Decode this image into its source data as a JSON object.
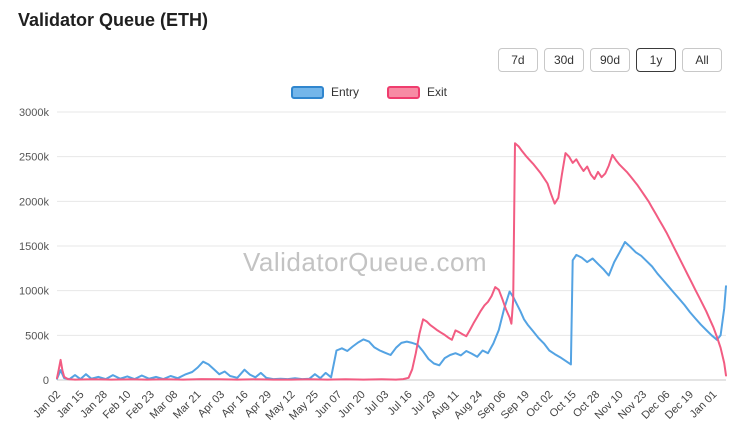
{
  "title": "Validator Queue (ETH)",
  "range_buttons": [
    {
      "label": "7d",
      "selected": false
    },
    {
      "label": "30d",
      "selected": false
    },
    {
      "label": "90d",
      "selected": false
    },
    {
      "label": "1y",
      "selected": true
    },
    {
      "label": "All",
      "selected": false
    }
  ],
  "legend": [
    {
      "label": "Entry",
      "color": "#74b6ea",
      "border": "#3086ce"
    },
    {
      "label": "Exit",
      "color": "#f78ba4",
      "border": "#ef3d6e"
    }
  ],
  "watermark": "ValidatorQueue.com",
  "chart_data": {
    "type": "line",
    "title": "Validator Queue (ETH)",
    "xlabel": "",
    "ylabel": "",
    "value_unit": "k",
    "ylim": [
      0,
      3000
    ],
    "y_ticks": [
      "0",
      "500k",
      "1000k",
      "1500k",
      "2000k",
      "2500k",
      "3000k"
    ],
    "y_tick_values": [
      0,
      500,
      1000,
      1500,
      2000,
      2500,
      3000
    ],
    "grid": "horizontal",
    "legend_position": "top",
    "x_range": [
      0,
      371
    ],
    "x_tick_days": [
      0,
      13,
      26,
      39,
      52,
      65,
      78,
      91,
      104,
      117,
      130,
      143,
      156,
      169,
      182,
      195,
      208,
      221,
      234,
      247,
      260,
      273,
      286,
      299,
      312,
      325,
      338,
      351,
      364
    ],
    "x_tick_labels": [
      "Jan 02",
      "Jan 15",
      "Jan 28",
      "Feb 10",
      "Feb 23",
      "Mar 08",
      "Mar 21",
      "Apr 03",
      "Apr 16",
      "Apr 29",
      "May 12",
      "May 25",
      "Jun 07",
      "Jun 20",
      "Jul 03",
      "Jul 16",
      "Jul 29",
      "Aug 11",
      "Aug 24",
      "Sep 06",
      "Sep 19",
      "Oct 02",
      "Oct 15",
      "Oct 28",
      "Nov 10",
      "Nov 23",
      "Dec 06",
      "Dec 19",
      "Jan 01"
    ],
    "series": [
      {
        "name": "Entry",
        "color": "#54a3e3",
        "points": [
          [
            0,
            15
          ],
          [
            2,
            110
          ],
          [
            4,
            20
          ],
          [
            7,
            10
          ],
          [
            10,
            55
          ],
          [
            13,
            10
          ],
          [
            16,
            65
          ],
          [
            19,
            15
          ],
          [
            23,
            35
          ],
          [
            27,
            10
          ],
          [
            31,
            55
          ],
          [
            35,
            15
          ],
          [
            39,
            40
          ],
          [
            43,
            10
          ],
          [
            47,
            50
          ],
          [
            51,
            15
          ],
          [
            55,
            35
          ],
          [
            59,
            10
          ],
          [
            63,
            45
          ],
          [
            67,
            20
          ],
          [
            71,
            60
          ],
          [
            75,
            90
          ],
          [
            78,
            140
          ],
          [
            81,
            205
          ],
          [
            84,
            175
          ],
          [
            87,
            120
          ],
          [
            90,
            65
          ],
          [
            93,
            95
          ],
          [
            96,
            45
          ],
          [
            100,
            25
          ],
          [
            104,
            115
          ],
          [
            107,
            60
          ],
          [
            110,
            30
          ],
          [
            113,
            80
          ],
          [
            116,
            25
          ],
          [
            120,
            10
          ],
          [
            124,
            15
          ],
          [
            128,
            10
          ],
          [
            132,
            20
          ],
          [
            136,
            10
          ],
          [
            140,
            15
          ],
          [
            143,
            65
          ],
          [
            146,
            20
          ],
          [
            149,
            80
          ],
          [
            152,
            30
          ],
          [
            155,
            330
          ],
          [
            158,
            355
          ],
          [
            161,
            325
          ],
          [
            164,
            375
          ],
          [
            167,
            420
          ],
          [
            170,
            455
          ],
          [
            173,
            430
          ],
          [
            176,
            365
          ],
          [
            179,
            330
          ],
          [
            182,
            305
          ],
          [
            185,
            280
          ],
          [
            188,
            360
          ],
          [
            191,
            415
          ],
          [
            194,
            430
          ],
          [
            197,
            415
          ],
          [
            200,
            395
          ],
          [
            203,
            320
          ],
          [
            206,
            235
          ],
          [
            209,
            185
          ],
          [
            212,
            165
          ],
          [
            215,
            245
          ],
          [
            218,
            280
          ],
          [
            221,
            300
          ],
          [
            224,
            275
          ],
          [
            227,
            325
          ],
          [
            230,
            295
          ],
          [
            233,
            260
          ],
          [
            236,
            330
          ],
          [
            239,
            300
          ],
          [
            242,
            410
          ],
          [
            245,
            560
          ],
          [
            248,
            800
          ],
          [
            251,
            990
          ],
          [
            253,
            930
          ],
          [
            255,
            850
          ],
          [
            257,
            770
          ],
          [
            259,
            680
          ],
          [
            261,
            620
          ],
          [
            264,
            545
          ],
          [
            267,
            470
          ],
          [
            270,
            410
          ],
          [
            273,
            330
          ],
          [
            276,
            290
          ],
          [
            279,
            255
          ],
          [
            282,
            215
          ],
          [
            285,
            175
          ],
          [
            286,
            1340
          ],
          [
            288,
            1400
          ],
          [
            291,
            1370
          ],
          [
            294,
            1320
          ],
          [
            297,
            1360
          ],
          [
            300,
            1300
          ],
          [
            303,
            1240
          ],
          [
            306,
            1170
          ],
          [
            309,
            1320
          ],
          [
            312,
            1430
          ],
          [
            315,
            1545
          ],
          [
            318,
            1490
          ],
          [
            321,
            1430
          ],
          [
            324,
            1390
          ],
          [
            327,
            1330
          ],
          [
            330,
            1270
          ],
          [
            333,
            1190
          ],
          [
            336,
            1120
          ],
          [
            339,
            1050
          ],
          [
            342,
            980
          ],
          [
            345,
            910
          ],
          [
            348,
            840
          ],
          [
            351,
            760
          ],
          [
            354,
            690
          ],
          [
            357,
            620
          ],
          [
            360,
            560
          ],
          [
            363,
            500
          ],
          [
            366,
            450
          ],
          [
            368,
            500
          ],
          [
            370,
            800
          ],
          [
            371,
            1050
          ]
        ]
      },
      {
        "name": "Exit",
        "color": "#f25c82",
        "points": [
          [
            0,
            20
          ],
          [
            1,
            120
          ],
          [
            2,
            225
          ],
          [
            3,
            110
          ],
          [
            4,
            35
          ],
          [
            6,
            10
          ],
          [
            10,
            5
          ],
          [
            20,
            8
          ],
          [
            30,
            5
          ],
          [
            40,
            8
          ],
          [
            50,
            5
          ],
          [
            60,
            8
          ],
          [
            70,
            5
          ],
          [
            80,
            10
          ],
          [
            90,
            8
          ],
          [
            100,
            5
          ],
          [
            110,
            8
          ],
          [
            120,
            5
          ],
          [
            130,
            5
          ],
          [
            140,
            8
          ],
          [
            150,
            5
          ],
          [
            160,
            8
          ],
          [
            170,
            5
          ],
          [
            180,
            8
          ],
          [
            188,
            5
          ],
          [
            192,
            10
          ],
          [
            195,
            25
          ],
          [
            197,
            120
          ],
          [
            199,
            300
          ],
          [
            201,
            520
          ],
          [
            203,
            680
          ],
          [
            205,
            655
          ],
          [
            207,
            615
          ],
          [
            209,
            585
          ],
          [
            211,
            555
          ],
          [
            213,
            530
          ],
          [
            215,
            505
          ],
          [
            217,
            475
          ],
          [
            219,
            450
          ],
          [
            221,
            555
          ],
          [
            223,
            535
          ],
          [
            225,
            510
          ],
          [
            227,
            490
          ],
          [
            229,
            560
          ],
          [
            231,
            635
          ],
          [
            233,
            705
          ],
          [
            235,
            775
          ],
          [
            237,
            835
          ],
          [
            239,
            875
          ],
          [
            241,
            940
          ],
          [
            243,
            1040
          ],
          [
            245,
            1010
          ],
          [
            247,
            905
          ],
          [
            249,
            790
          ],
          [
            251,
            700
          ],
          [
            252,
            630
          ],
          [
            253,
            900
          ],
          [
            254,
            2650
          ],
          [
            256,
            2615
          ],
          [
            258,
            2560
          ],
          [
            260,
            2510
          ],
          [
            262,
            2465
          ],
          [
            264,
            2420
          ],
          [
            266,
            2370
          ],
          [
            268,
            2320
          ],
          [
            270,
            2260
          ],
          [
            272,
            2200
          ],
          [
            274,
            2080
          ],
          [
            276,
            1975
          ],
          [
            278,
            2040
          ],
          [
            280,
            2300
          ],
          [
            282,
            2540
          ],
          [
            284,
            2500
          ],
          [
            286,
            2430
          ],
          [
            288,
            2470
          ],
          [
            290,
            2400
          ],
          [
            292,
            2340
          ],
          [
            294,
            2390
          ],
          [
            296,
            2300
          ],
          [
            298,
            2250
          ],
          [
            300,
            2330
          ],
          [
            302,
            2270
          ],
          [
            304,
            2310
          ],
          [
            306,
            2400
          ],
          [
            308,
            2520
          ],
          [
            310,
            2460
          ],
          [
            312,
            2410
          ],
          [
            314,
            2370
          ],
          [
            316,
            2330
          ],
          [
            318,
            2280
          ],
          [
            320,
            2230
          ],
          [
            322,
            2180
          ],
          [
            324,
            2120
          ],
          [
            326,
            2060
          ],
          [
            328,
            2000
          ],
          [
            330,
            1930
          ],
          [
            332,
            1860
          ],
          [
            334,
            1790
          ],
          [
            336,
            1720
          ],
          [
            338,
            1650
          ],
          [
            340,
            1570
          ],
          [
            342,
            1490
          ],
          [
            344,
            1410
          ],
          [
            346,
            1330
          ],
          [
            348,
            1250
          ],
          [
            350,
            1170
          ],
          [
            352,
            1090
          ],
          [
            354,
            1010
          ],
          [
            356,
            930
          ],
          [
            358,
            850
          ],
          [
            360,
            770
          ],
          [
            362,
            680
          ],
          [
            364,
            590
          ],
          [
            366,
            480
          ],
          [
            368,
            360
          ],
          [
            370,
            190
          ],
          [
            371,
            50
          ]
        ]
      }
    ]
  }
}
